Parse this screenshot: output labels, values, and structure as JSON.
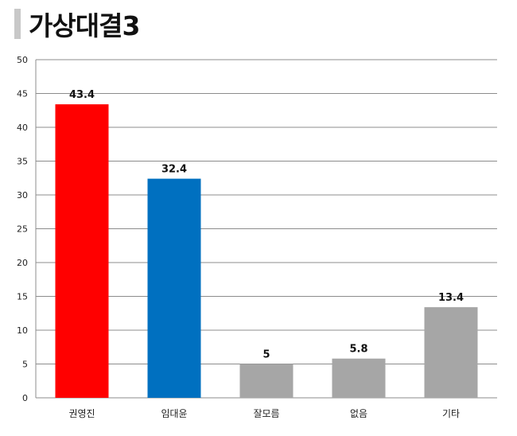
{
  "title": "가상대결3",
  "chart_data": {
    "type": "bar",
    "categories": [
      "권영진",
      "임대윤",
      "잘모름",
      "없음",
      "기타"
    ],
    "values": [
      43.4,
      32.4,
      5,
      5.8,
      13.4
    ],
    "data_labels": [
      "43.4",
      "32.4",
      "5",
      "5.8",
      "13.4"
    ],
    "colors": [
      "#ff0000",
      "#0070c0",
      "#a6a6a6",
      "#a6a6a6",
      "#a6a6a6"
    ],
    "ylim": [
      0,
      50
    ],
    "yticks": [
      0,
      5,
      10,
      15,
      20,
      25,
      30,
      35,
      40,
      45,
      50
    ],
    "xlabel": "",
    "ylabel": "",
    "grid": true,
    "legend": "none"
  }
}
